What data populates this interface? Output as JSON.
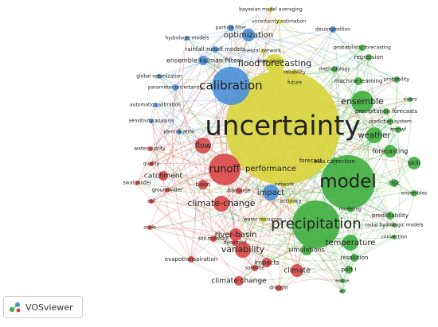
{
  "nodes": [
    {
      "label": "uncertainty",
      "color": "#d8d43c"
    },
    {
      "label": "bayesian model averaging",
      "color": "#d8d43c"
    },
    {
      "label": "uncertainty estimation",
      "color": "#d8d43c"
    },
    {
      "label": "neural network",
      "color": "#d8d43c"
    },
    {
      "label": "time series",
      "color": "#d8d43c"
    },
    {
      "label": "reliability",
      "color": "#d8d43c"
    },
    {
      "label": "future",
      "color": "#d8d43c"
    },
    {
      "label": "flood forecasting",
      "color": "#d8d43c"
    },
    {
      "label": "performance",
      "color": "#d8d43c"
    },
    {
      "label": "forecast",
      "color": "#d8d43c"
    },
    {
      "label": "network",
      "color": "#d8d43c"
    },
    {
      "label": "accuracy",
      "color": "#d8d43c"
    },
    {
      "label": "water resources",
      "color": "#d8d43c"
    },
    {
      "label": "particle filter",
      "color": "#4a8fd8"
    },
    {
      "label": "optimization",
      "color": "#4a8fd8"
    },
    {
      "label": "decomposition",
      "color": "#4a8fd8"
    },
    {
      "label": "hydrologic models",
      "color": "#4a8fd8"
    },
    {
      "label": "rainfall-runoff models",
      "color": "#4a8fd8"
    },
    {
      "label": "ensemble kalman filter",
      "color": "#4a8fd8"
    },
    {
      "label": "global optimization",
      "color": "#4a8fd8"
    },
    {
      "label": "parameter uncertainty",
      "color": "#4a8fd8"
    },
    {
      "label": "calibration",
      "color": "#4a8fd8"
    },
    {
      "label": "automatic calibration",
      "color": "#4a8fd8"
    },
    {
      "label": "sensitivity analysis",
      "color": "#4a8fd8"
    },
    {
      "label": "identification",
      "color": "#4a8fd8"
    },
    {
      "label": "impact",
      "color": "#4a8fd8"
    },
    {
      "label": "water quality",
      "color": "#d94646"
    },
    {
      "label": "quality",
      "color": "#d94646"
    },
    {
      "label": "flow",
      "color": "#d94646"
    },
    {
      "label": "catchment",
      "color": "#d94646"
    },
    {
      "label": "runoff",
      "color": "#d94646"
    },
    {
      "label": "swat model",
      "color": "#d94646"
    },
    {
      "label": "groundwater",
      "color": "#d94646"
    },
    {
      "label": "basin",
      "color": "#d94646"
    },
    {
      "label": "discharge",
      "color": "#d94646"
    },
    {
      "label": "soil",
      "color": "#d94646"
    },
    {
      "label": "climate-change",
      "color": "#d94646"
    },
    {
      "label": "scale",
      "color": "#d94646"
    },
    {
      "label": "river-basin",
      "color": "#d94646"
    },
    {
      "label": "soil moisture",
      "color": "#d94646"
    },
    {
      "label": "dynamics",
      "color": "#d94646"
    },
    {
      "label": "variability",
      "color": "#d94646"
    },
    {
      "label": "evapotranspiration",
      "color": "#d94646"
    },
    {
      "label": "satellite",
      "color": "#d94646"
    },
    {
      "label": "impacts",
      "color": "#d94646"
    },
    {
      "label": "climate change",
      "color": "#d94646"
    },
    {
      "label": "drought",
      "color": "#d94646"
    },
    {
      "label": "climate",
      "color": "#d94646"
    },
    {
      "label": "ensemble",
      "color": "#3fae3f"
    },
    {
      "label": "probability",
      "color": "#3fae3f"
    },
    {
      "label": "rivers",
      "color": "#3fae3f"
    },
    {
      "label": "precipitation forecasts",
      "color": "#3fae3f"
    },
    {
      "label": "prediction system",
      "color": "#3fae3f"
    },
    {
      "label": "ecmwf",
      "color": "#3fae3f"
    },
    {
      "label": "weather",
      "color": "#3fae3f"
    },
    {
      "label": "forecasting",
      "color": "#3fae3f"
    },
    {
      "label": "skill",
      "color": "#3fae3f"
    },
    {
      "label": "bias correction",
      "color": "#3fae3f"
    },
    {
      "label": "model",
      "color": "#3fae3f"
    },
    {
      "label": "risk",
      "color": "#3fae3f"
    },
    {
      "label": "ensembles",
      "color": "#3fae3f"
    },
    {
      "label": "modeling",
      "color": "#3fae3f"
    },
    {
      "label": "predictability",
      "color": "#3fae3f"
    },
    {
      "label": "radar hydrologic models",
      "color": "#3fae3f"
    },
    {
      "label": "precipitation",
      "color": "#3fae3f"
    },
    {
      "label": "temperature",
      "color": "#3fae3f"
    },
    {
      "label": "convection",
      "color": "#3fae3f"
    },
    {
      "label": "resolution",
      "color": "#3fae3f"
    },
    {
      "label": "simulations",
      "color": "#3fae3f"
    },
    {
      "label": "part i",
      "color": "#3fae3f"
    },
    {
      "label": "europe",
      "color": "#3fae3f"
    },
    {
      "label": "wrf",
      "color": "#3fae3f"
    },
    {
      "label": "regression",
      "color": "#3fae3f"
    },
    {
      "label": "methodology",
      "color": "#3fae3f"
    },
    {
      "label": "machine learning",
      "color": "#3fae3f"
    },
    {
      "label": "probabilistic forecasting",
      "color": "#3fae3f"
    }
  ],
  "logo": "VOSviewer"
}
